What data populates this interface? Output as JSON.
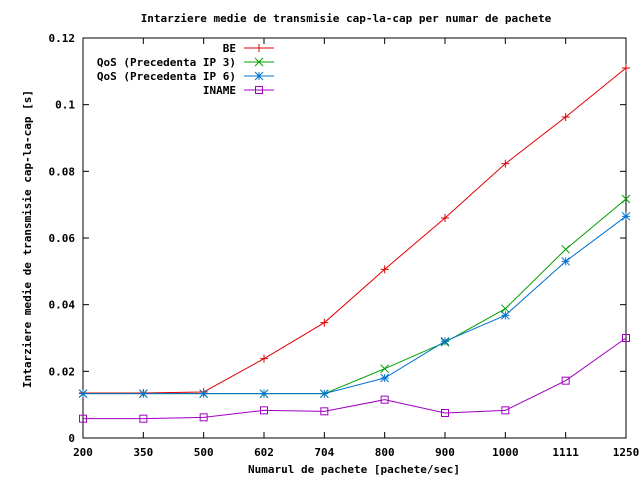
{
  "chart_data": {
    "type": "line",
    "title": "Intarziere medie de transmisie cap-la-cap per numar de pachete",
    "xlabel": "Numarul de pachete [pachete/sec]",
    "ylabel": "Intarziere medie de transmisie cap-la-cap [s]",
    "categories": [
      "200",
      "350",
      "500",
      "602",
      "704",
      "800",
      "900",
      "1000",
      "1111",
      "1250"
    ],
    "y_ticks": [
      "0",
      "0.02",
      "0.04",
      "0.06",
      "0.08",
      "0.1",
      "0.12"
    ],
    "ylim": [
      0,
      0.12
    ],
    "grid": false,
    "legend_position": "top-right",
    "series": [
      {
        "name": "BE",
        "color": "#e00000",
        "marker": "plus",
        "values": [
          0.0135,
          0.0135,
          0.0138,
          0.0238,
          0.0346,
          0.0506,
          0.066,
          0.0823,
          0.0963,
          0.111
        ]
      },
      {
        "name": "QoS (Precedenta IP 3)",
        "color": "#00a000",
        "marker": "cross",
        "values": [
          0.0133,
          0.0133,
          0.0133,
          0.0133,
          0.0133,
          0.0208,
          0.0287,
          0.0388,
          0.0566,
          0.0717
        ]
      },
      {
        "name": "QoS (Precedenta IP 6)",
        "color": "#0070d0",
        "marker": "star",
        "values": [
          0.0133,
          0.0133,
          0.0133,
          0.0133,
          0.0133,
          0.018,
          0.029,
          0.0368,
          0.053,
          0.0665
        ]
      },
      {
        "name": "INAME",
        "color": "#a000c0",
        "marker": "square",
        "values": [
          0.0058,
          0.0058,
          0.0062,
          0.0083,
          0.008,
          0.0115,
          0.0075,
          0.0083,
          0.0172,
          0.03
        ]
      }
    ]
  }
}
